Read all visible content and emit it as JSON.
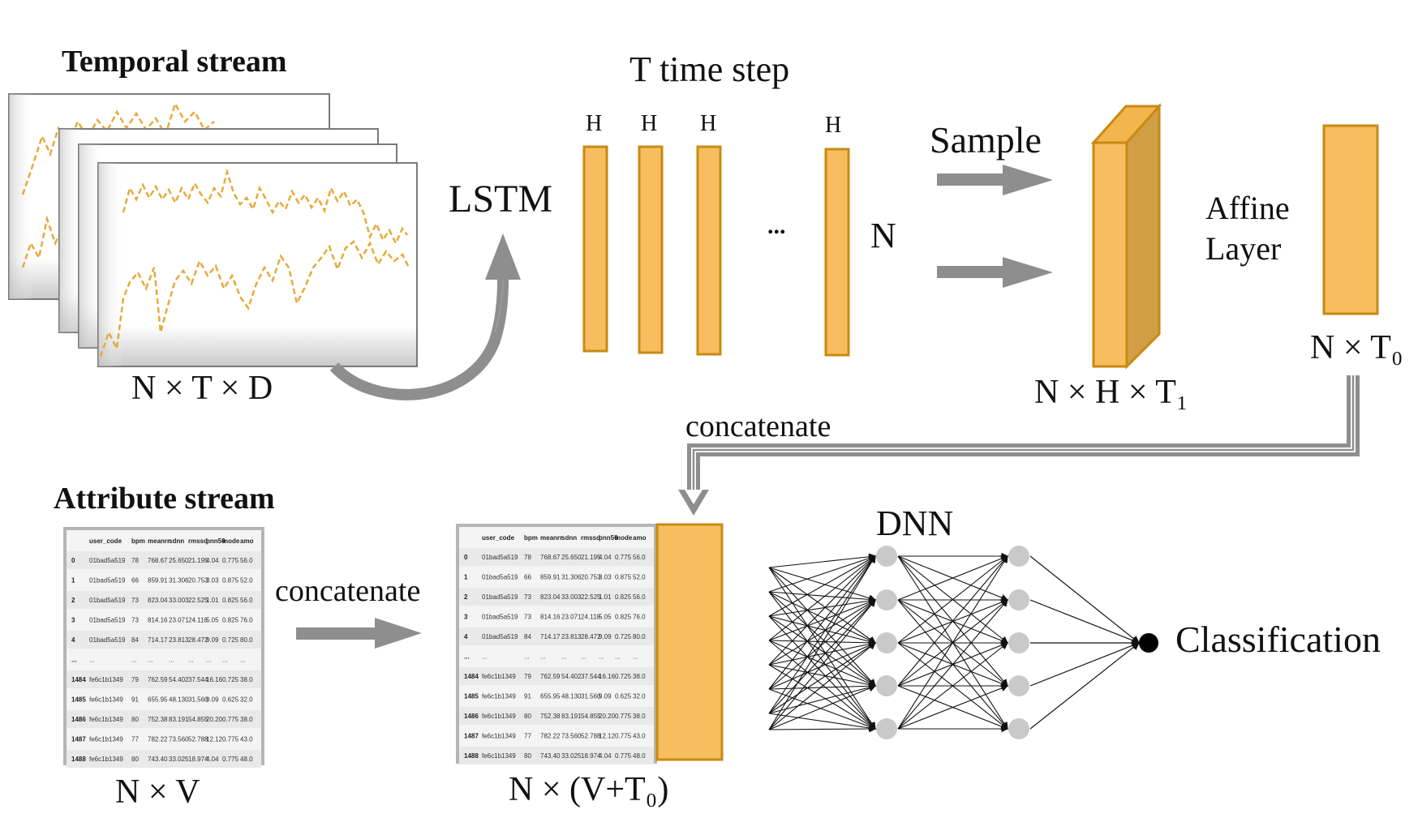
{
  "temporal": {
    "title": "Temporal stream",
    "shape": "N × T × D"
  },
  "lstm": {
    "label": "LSTM",
    "time_step": "T time step",
    "h_labels": [
      "H",
      "H",
      "H",
      "H"
    ],
    "ellipsis": "...",
    "n_label": "N"
  },
  "sample": {
    "label": "Sample",
    "shape": "N × H × T₁"
  },
  "affine": {
    "line1": "Affine",
    "line2": "Layer",
    "shape": "N × T₀"
  },
  "concat_top": {
    "label": "concatenate"
  },
  "attribute": {
    "title": "Attribute stream",
    "shape": "N × V",
    "concat_label": "concatenate",
    "table": {
      "columns": [
        "",
        "user_code",
        "bpm",
        "meanrr",
        "sdnn",
        "rmssd",
        "pnn50",
        "mode",
        "amo"
      ],
      "rows": [
        [
          "0",
          "01bad5a519",
          "78",
          "768.67",
          "25.650",
          "21.195",
          "4.04",
          "0.775",
          "56.0"
        ],
        [
          "1",
          "01bad5a519",
          "66",
          "859.91",
          "31.306",
          "20.753",
          "3.03",
          "0.875",
          "52.0"
        ],
        [
          "2",
          "01bad5a519",
          "73",
          "823.04",
          "33.003",
          "22.525",
          "1.01",
          "0.825",
          "56.0"
        ],
        [
          "3",
          "01bad5a519",
          "73",
          "814.16",
          "23.071",
          "24.118",
          "5.05",
          "0.825",
          "76.0"
        ],
        [
          "4",
          "01bad5a519",
          "84",
          "714.17",
          "23.813",
          "28.472",
          "9.09",
          "0.725",
          "80.0"
        ],
        [
          "...",
          "...",
          "...",
          "...",
          "...",
          "...",
          "...",
          "...",
          "..."
        ],
        [
          "1484",
          "fe6c1b1349",
          "79",
          "762.59",
          "54.402",
          "37.544",
          "16.16",
          "0.725",
          "38.0"
        ],
        [
          "1485",
          "fe6c1b1349",
          "91",
          "655.95",
          "48.130",
          "31.560",
          "9.09",
          "0.625",
          "32.0"
        ],
        [
          "1486",
          "fe6c1b1349",
          "80",
          "752.38",
          "83.191",
          "54.855",
          "20.20",
          "0.775",
          "38.0"
        ],
        [
          "1487",
          "fe6c1b1349",
          "77",
          "782.22",
          "73.560",
          "52.788",
          "12.12",
          "0.775",
          "43.0"
        ],
        [
          "1488",
          "fe6c1b1349",
          "80",
          "743.40",
          "33.025",
          "18.974",
          "4.04",
          "0.775",
          "48.0"
        ]
      ]
    }
  },
  "combined": {
    "shape": "N × (V+T₀)"
  },
  "dnn": {
    "label": "DNN",
    "output": "Classification"
  },
  "colors": {
    "orange_fill": "#F8BD5E",
    "orange_border": "#C98A12",
    "cube_side": "#D19F46",
    "arrow_gray": "#8E8E8E",
    "dash_orange": "#E8A93A",
    "node_gray": "#C9C9C9"
  }
}
